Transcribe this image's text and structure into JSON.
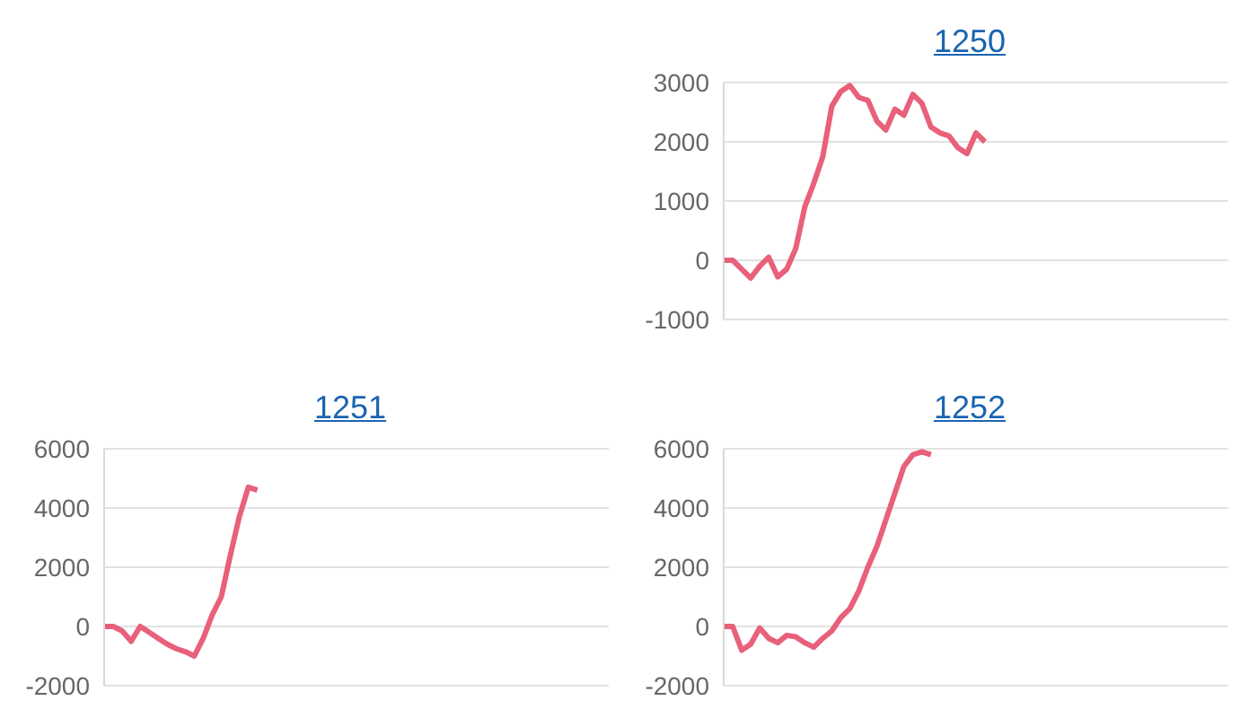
{
  "chart_data": [
    {
      "type": "line",
      "title": "1250",
      "categories": [
        null,
        null,
        null,
        null,
        null,
        null,
        null,
        null,
        null,
        null,
        null,
        null,
        null,
        null,
        null,
        null,
        null,
        null,
        null,
        null,
        null,
        null,
        null,
        null,
        null,
        null,
        null,
        null,
        null,
        null,
        null,
        null,
        null,
        null,
        null,
        null,
        null,
        null,
        null,
        null,
        null,
        null,
        null,
        null,
        null,
        null,
        null,
        null,
        null,
        null,
        null,
        null,
        null,
        null,
        null,
        null,
        null
      ],
      "values": [
        0,
        0,
        -150,
        -300,
        -100,
        50,
        -280,
        -150,
        200,
        900,
        1300,
        1750,
        2600,
        2850,
        2950,
        2750,
        2700,
        2350,
        2200,
        2550,
        2450,
        2800,
        2650,
        2250,
        2150,
        2100,
        1900,
        1800,
        2150,
        2000,
        null,
        null,
        null,
        null,
        null,
        null,
        null,
        null,
        null,
        null,
        null,
        null,
        null,
        null,
        null,
        null,
        null,
        null,
        null,
        null,
        null,
        null,
        null,
        null,
        null,
        null,
        null
      ],
      "color": "#e8607a",
      "ylim": [
        -1000,
        3000
      ],
      "yticks": [
        -1000,
        0,
        1000,
        2000,
        3000
      ],
      "grid": "y",
      "marker": "none",
      "tick_labels": "y"
    },
    {
      "type": "line",
      "title": "1251",
      "categories": [
        null,
        null,
        null,
        null,
        null,
        null,
        null,
        null,
        null,
        null,
        null,
        null,
        null,
        null,
        null,
        null,
        null,
        null,
        null,
        null,
        null,
        null,
        null,
        null,
        null,
        null,
        null,
        null,
        null,
        null,
        null,
        null,
        null,
        null,
        null,
        null,
        null,
        null,
        null,
        null,
        null,
        null,
        null,
        null,
        null,
        null,
        null,
        null,
        null,
        null,
        null,
        null,
        null,
        null,
        null,
        null,
        null
      ],
      "values": [
        0,
        0,
        -150,
        -500,
        0,
        -200,
        -400,
        -600,
        -750,
        -850,
        -1000,
        -400,
        400,
        1000,
        2400,
        3700,
        4700,
        4600,
        null,
        null,
        null,
        null,
        null,
        null,
        null,
        null,
        null,
        null,
        null,
        null,
        null,
        null,
        null,
        null,
        null,
        null,
        null,
        null,
        null,
        null,
        null,
        null,
        null,
        null,
        null,
        null,
        null,
        null,
        null,
        null,
        null,
        null,
        null,
        null,
        null,
        null,
        null
      ],
      "color": "#e8607a",
      "ylim": [
        -2000,
        6000
      ],
      "yticks": [
        -2000,
        0,
        2000,
        4000,
        6000
      ],
      "grid": "y",
      "marker": "none",
      "tick_labels": "y"
    },
    {
      "type": "line",
      "title": "1252",
      "categories": [
        null,
        null,
        null,
        null,
        null,
        null,
        null,
        null,
        null,
        null,
        null,
        null,
        null,
        null,
        null,
        null,
        null,
        null,
        null,
        null,
        null,
        null,
        null,
        null,
        null,
        null,
        null,
        null,
        null,
        null,
        null,
        null,
        null,
        null,
        null,
        null,
        null,
        null,
        null,
        null,
        null,
        null,
        null,
        null,
        null,
        null,
        null,
        null,
        null,
        null,
        null,
        null,
        null,
        null,
        null,
        null,
        null
      ],
      "values": [
        0,
        0,
        -800,
        -600,
        -50,
        -400,
        -550,
        -300,
        -350,
        -550,
        -700,
        -400,
        -150,
        300,
        600,
        1200,
        2000,
        2700,
        3600,
        4500,
        5400,
        5800,
        5900,
        5800,
        null,
        null,
        null,
        null,
        null,
        null,
        null,
        null,
        null,
        null,
        null,
        null,
        null,
        null,
        null,
        null,
        null,
        null,
        null,
        null,
        null,
        null,
        null,
        null,
        null,
        null,
        null,
        null,
        null,
        null,
        null,
        null,
        null
      ],
      "color": "#e8607a",
      "ylim": [
        -2000,
        6000
      ],
      "yticks": [
        -2000,
        0,
        2000,
        4000,
        6000
      ],
      "grid": "y",
      "marker": "none",
      "tick_labels": "y"
    }
  ]
}
